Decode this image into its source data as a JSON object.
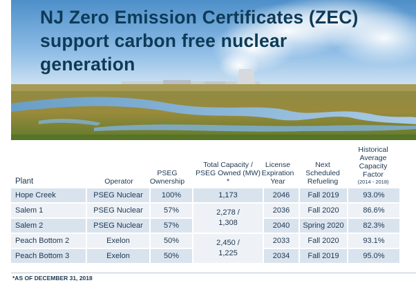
{
  "title": {
    "line1": "NJ Zero Emission Certificates (ZEC)",
    "line2": "support carbon free nuclear",
    "line3": "generation"
  },
  "table": {
    "headers": {
      "plant": "Plant",
      "operator": "Operator",
      "ownership": "PSEG Ownership",
      "capacity": "Total Capacity / PSEG Owned (MW) *",
      "license": "License Expiration Year",
      "refueling": "Next Scheduled Refueling",
      "factor": "Historical Average Capacity Factor",
      "factor_period": "(2014 - 2018)"
    },
    "rows": [
      {
        "plant": "Hope Creek",
        "operator": "PSEG Nuclear",
        "ownership": "100%",
        "capacity": "1,173",
        "license": "2046",
        "refueling": "Fall 2019",
        "factor": "93.0%"
      },
      {
        "plant": "Salem 1",
        "operator": "PSEG Nuclear",
        "ownership": "57%",
        "license": "2036",
        "refueling": "Fall 2020",
        "factor": "86.6%"
      },
      {
        "plant": "Salem 2",
        "operator": "PSEG Nuclear",
        "ownership": "57%",
        "license": "2040",
        "refueling": "Spring 2020",
        "factor": "82.3%"
      },
      {
        "plant": "Peach Bottom 2",
        "operator": "Exelon",
        "ownership": "50%",
        "license": "2033",
        "refueling": "Fall 2020",
        "factor": "93.1%"
      },
      {
        "plant": "Peach Bottom 3",
        "operator": "Exelon",
        "ownership": "50%",
        "license": "2034",
        "refueling": "Fall 2019",
        "factor": "95.0%"
      }
    ],
    "merged": {
      "salem": "2,278 / 1,308",
      "peach": "2,450 / 1,225"
    }
  },
  "footnote": "*AS OF DECEMBER 31, 2018",
  "colors": {
    "title": "#0d3a57",
    "row_dark": "#d9e3ee",
    "row_light": "#eef2f6"
  }
}
